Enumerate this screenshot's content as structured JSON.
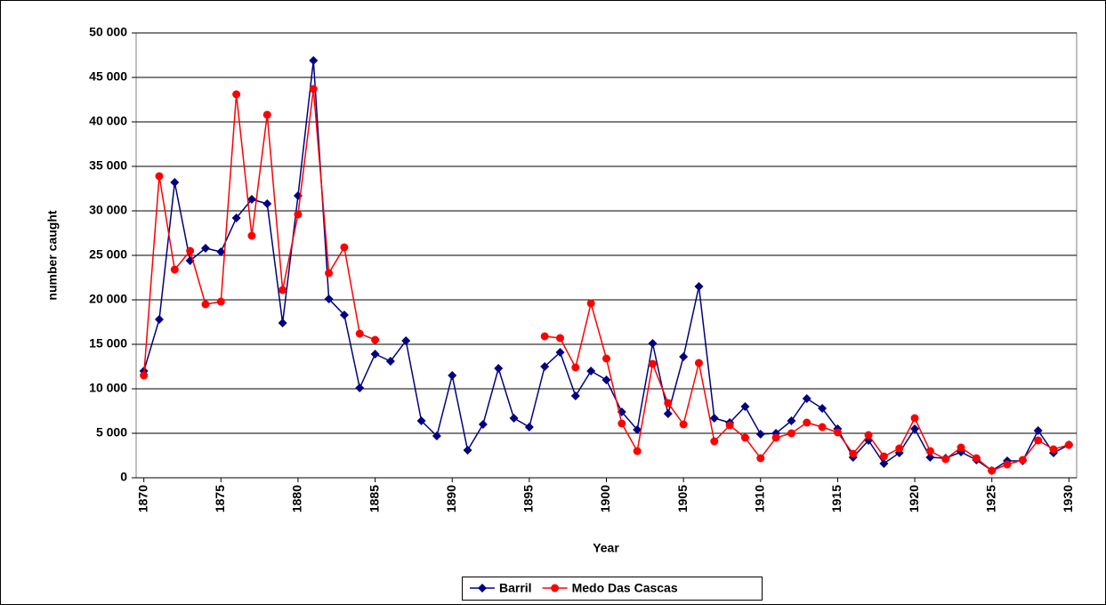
{
  "chart_data": {
    "type": "line",
    "xlabel": "Year",
    "ylabel": "number caught",
    "x": [
      1870,
      1871,
      1872,
      1873,
      1874,
      1875,
      1876,
      1877,
      1878,
      1879,
      1880,
      1881,
      1882,
      1883,
      1884,
      1885,
      1886,
      1887,
      1888,
      1889,
      1890,
      1891,
      1892,
      1893,
      1894,
      1895,
      1896,
      1897,
      1898,
      1899,
      1900,
      1901,
      1902,
      1903,
      1904,
      1905,
      1906,
      1907,
      1908,
      1909,
      1910,
      1911,
      1912,
      1913,
      1914,
      1915,
      1916,
      1917,
      1918,
      1919,
      1920,
      1921,
      1922,
      1923,
      1924,
      1925,
      1926,
      1927,
      1928,
      1929,
      1930
    ],
    "xlim": [
      1869.5,
      1930.5
    ],
    "xticks": [
      1870,
      1875,
      1880,
      1885,
      1890,
      1895,
      1900,
      1905,
      1910,
      1915,
      1920,
      1925,
      1930
    ],
    "ylim": [
      0,
      50000
    ],
    "yticks": [
      {
        "value": 0,
        "label": "0"
      },
      {
        "value": 5000,
        "label": "5 000"
      },
      {
        "value": 10000,
        "label": "10 000"
      },
      {
        "value": 15000,
        "label": "15 000"
      },
      {
        "value": 20000,
        "label": "20 000"
      },
      {
        "value": 25000,
        "label": "25 000"
      },
      {
        "value": 30000,
        "label": "30 000"
      },
      {
        "value": 35000,
        "label": "35 000"
      },
      {
        "value": 40000,
        "label": "40 000"
      },
      {
        "value": 45000,
        "label": "45 000"
      },
      {
        "value": 50000,
        "label": "50 000"
      }
    ],
    "grid": true,
    "legend": "bottom",
    "series": [
      {
        "name": "Barril",
        "color": "#000080",
        "marker": "diamond",
        "values": [
          12000,
          17800,
          33200,
          24400,
          25800,
          25400,
          29200,
          31300,
          30800,
          17400,
          31700,
          46900,
          20100,
          18300,
          10100,
          13900,
          13100,
          15400,
          6400,
          4700,
          11500,
          3100,
          6000,
          12300,
          6700,
          5700,
          12500,
          14100,
          9200,
          12000,
          11000,
          7400,
          5400,
          15100,
          7200,
          13600,
          21500,
          6700,
          6200,
          8000,
          4900,
          5000,
          6400,
          8900,
          7800,
          5500,
          2300,
          4200,
          1600,
          2800,
          5500,
          2300,
          2200,
          2900,
          2000,
          800,
          1900,
          1900,
          5300,
          2800,
          3700
        ]
      },
      {
        "name": "Medo Das Cascas",
        "color": "#ff0000",
        "marker": "circle",
        "values": [
          11500,
          33900,
          23400,
          25500,
          19500,
          19800,
          43100,
          27200,
          40800,
          21100,
          29600,
          43700,
          23000,
          25900,
          16200,
          15500,
          null,
          null,
          null,
          null,
          null,
          null,
          null,
          null,
          null,
          null,
          15900,
          15700,
          12400,
          19600,
          13400,
          6100,
          3000,
          12800,
          8400,
          6000,
          12900,
          4100,
          5900,
          4500,
          2200,
          4500,
          5000,
          6200,
          5700,
          5100,
          2700,
          4800,
          2400,
          3300,
          6700,
          3000,
          2100,
          3400,
          2200,
          800,
          1500,
          2000,
          4200,
          3200,
          3700
        ]
      }
    ]
  }
}
